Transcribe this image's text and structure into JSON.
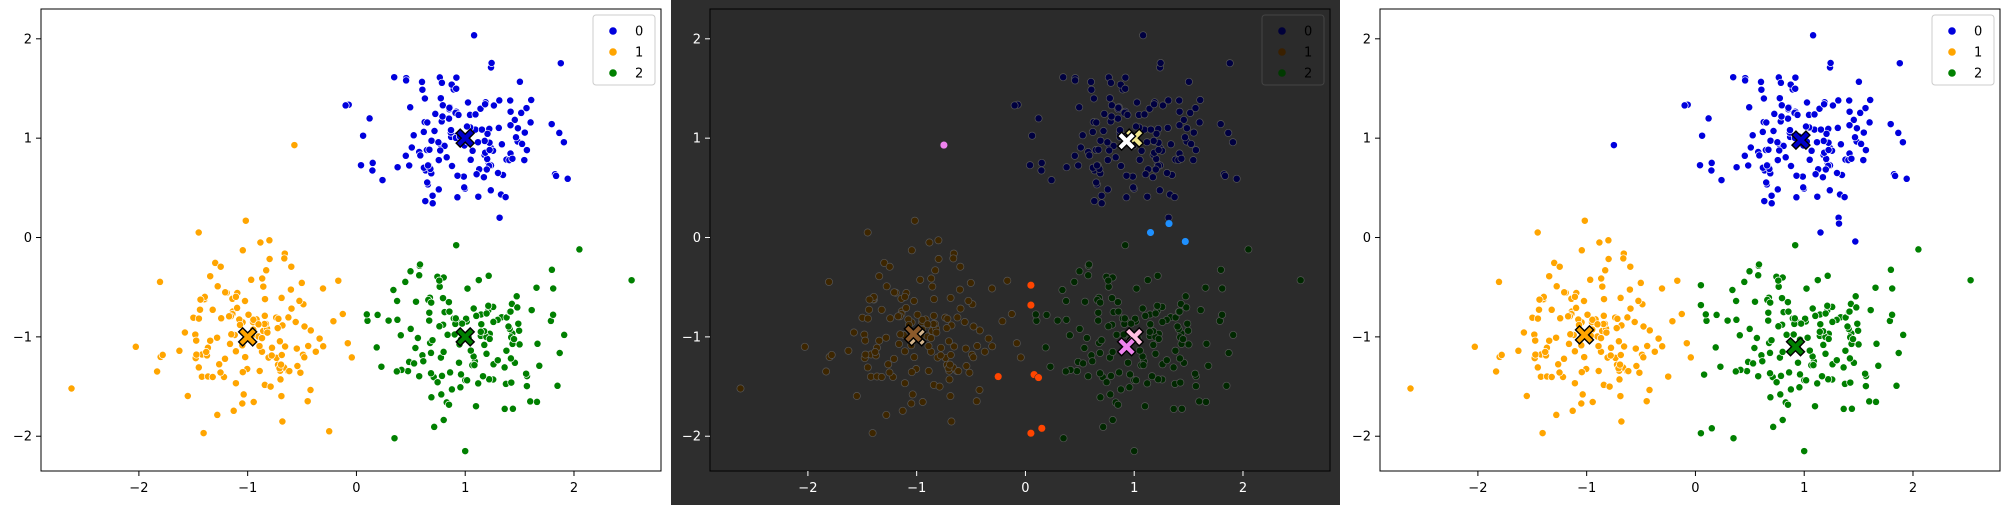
{
  "chart_data": [
    {
      "type": "scatter",
      "title": "",
      "xlabel": "",
      "ylabel": "",
      "xlim": [
        -2.9,
        2.8
      ],
      "ylim": [
        -2.35,
        2.3
      ],
      "xticks": [
        -2,
        -1,
        0,
        1,
        2
      ],
      "yticks": [
        -2,
        -1,
        0,
        1,
        2
      ],
      "background": "#ffffff",
      "grid": false,
      "legend": {
        "position": "top-right",
        "entries": [
          "0",
          "1",
          "2"
        ],
        "colors": [
          "#0000dd",
          "#ffa500",
          "#008000"
        ]
      },
      "series": [
        {
          "name": "0",
          "color": "#0000dd",
          "center": [
            1.0,
            1.0
          ],
          "spread": 0.38,
          "count": 150,
          "seed": 11,
          "outliers": [
            [
              -0.1,
              1.33
            ]
          ]
        },
        {
          "name": "1",
          "color": "#ffa500",
          "center": [
            -1.0,
            -1.0
          ],
          "spread": 0.38,
          "count": 150,
          "seed": 23,
          "outliers": [
            [
              -0.57,
              0.93
            ],
            [
              -2.62,
              -1.52
            ],
            [
              -1.45,
              0.05
            ],
            [
              -0.25,
              -1.95
            ]
          ]
        },
        {
          "name": "2",
          "color": "#008000",
          "center": [
            1.0,
            -1.0
          ],
          "spread": 0.38,
          "count": 150,
          "seed": 37,
          "outliers": [
            [
              2.53,
              -0.43
            ],
            [
              2.05,
              -0.12
            ],
            [
              0.35,
              -2.02
            ],
            [
              1.0,
              -2.15
            ]
          ]
        }
      ],
      "centroids": [
        {
          "x": 1.0,
          "y": 1.0,
          "color": "#0000cc"
        },
        {
          "x": -1.0,
          "y": -1.0,
          "color": "#ffa500"
        },
        {
          "x": 1.0,
          "y": -1.0,
          "color": "#008000"
        }
      ],
      "highlights": []
    },
    {
      "type": "scatter",
      "title": "",
      "xlabel": "",
      "ylabel": "",
      "xlim": [
        -2.9,
        2.8
      ],
      "ylim": [
        -2.35,
        2.3
      ],
      "xticks": [
        -2,
        -1,
        0,
        1,
        2
      ],
      "yticks": [
        -2,
        -1,
        0,
        1,
        2
      ],
      "background": "#2b2b2b",
      "grid": false,
      "legend": {
        "position": "top-right",
        "entries": [
          "0",
          "1",
          "2"
        ],
        "colors": [
          "#00003a",
          "#3a2000",
          "#003a00"
        ]
      },
      "series": [
        {
          "name": "0",
          "color": "#000040",
          "center": [
            1.0,
            1.0
          ],
          "spread": 0.38,
          "count": 150,
          "seed": 11,
          "outliers": [
            [
              -0.1,
              1.33
            ]
          ]
        },
        {
          "name": "1",
          "color": "#3d2600",
          "center": [
            -1.0,
            -1.0
          ],
          "spread": 0.38,
          "count": 150,
          "seed": 23,
          "outliers": [
            [
              -2.62,
              -1.52
            ],
            [
              -1.45,
              0.05
            ]
          ]
        },
        {
          "name": "2",
          "color": "#002800",
          "center": [
            1.0,
            -1.0
          ],
          "spread": 0.38,
          "count": 150,
          "seed": 37,
          "outliers": [
            [
              2.53,
              -0.43
            ],
            [
              2.05,
              -0.12
            ],
            [
              0.35,
              -2.02
            ],
            [
              1.0,
              -2.15
            ]
          ]
        }
      ],
      "centroids": [
        {
          "x": 1.0,
          "y": 1.0,
          "color": "#f0e68c"
        },
        {
          "x": 0.93,
          "y": 0.97,
          "color": "#ffffff"
        },
        {
          "x": -1.0,
          "y": -1.0,
          "color": "#d2b48c"
        },
        {
          "x": -1.03,
          "y": -0.97,
          "color": "#8b5a2b"
        },
        {
          "x": 1.0,
          "y": -1.0,
          "color": "#ffc0e0"
        },
        {
          "x": 0.93,
          "y": -1.1,
          "color": "#ee82ee"
        }
      ],
      "highlights": [
        {
          "x": -0.75,
          "y": 0.93,
          "color": "#ee82ee"
        },
        {
          "x": 1.15,
          "y": 0.05,
          "color": "#1e90ff"
        },
        {
          "x": 1.32,
          "y": 0.14,
          "color": "#1e90ff"
        },
        {
          "x": 1.47,
          "y": -0.04,
          "color": "#1e90ff"
        },
        {
          "x": 0.05,
          "y": -0.48,
          "color": "#ff4500"
        },
        {
          "x": 0.05,
          "y": -0.68,
          "color": "#ff4500"
        },
        {
          "x": -0.25,
          "y": -1.4,
          "color": "#ff4500"
        },
        {
          "x": 0.08,
          "y": -1.38,
          "color": "#ff4500"
        },
        {
          "x": 0.12,
          "y": -1.41,
          "color": "#ff4500"
        },
        {
          "x": 0.05,
          "y": -1.97,
          "color": "#ff4500"
        },
        {
          "x": 0.15,
          "y": -1.92,
          "color": "#ff4500"
        }
      ]
    },
    {
      "type": "scatter",
      "title": "",
      "xlabel": "",
      "ylabel": "",
      "xlim": [
        -2.9,
        2.8
      ],
      "ylim": [
        -2.35,
        2.3
      ],
      "xticks": [
        -2,
        -1,
        0,
        1,
        2
      ],
      "yticks": [
        -2,
        -1,
        0,
        1,
        2
      ],
      "background": "#ffffff",
      "grid": false,
      "legend": {
        "position": "top-right",
        "entries": [
          "0",
          "1",
          "2"
        ],
        "colors": [
          "#0000dd",
          "#ffa500",
          "#008000"
        ]
      },
      "series": [
        {
          "name": "0",
          "color": "#0000dd",
          "center": [
            1.0,
            1.0
          ],
          "spread": 0.38,
          "count": 150,
          "seed": 11,
          "outliers": [
            [
              -0.1,
              1.33
            ],
            [
              -0.75,
              0.93
            ],
            [
              1.15,
              0.05
            ],
            [
              1.32,
              0.14
            ],
            [
              1.47,
              -0.04
            ]
          ]
        },
        {
          "name": "1",
          "color": "#ffa500",
          "center": [
            -1.0,
            -1.0
          ],
          "spread": 0.38,
          "count": 150,
          "seed": 23,
          "outliers": [
            [
              -2.62,
              -1.52
            ],
            [
              -1.45,
              0.05
            ],
            [
              -0.25,
              -1.4
            ]
          ]
        },
        {
          "name": "2",
          "color": "#008000",
          "center": [
            1.0,
            -1.0
          ],
          "spread": 0.38,
          "count": 150,
          "seed": 37,
          "outliers": [
            [
              2.53,
              -0.43
            ],
            [
              2.05,
              -0.12
            ],
            [
              0.35,
              -2.02
            ],
            [
              1.0,
              -2.15
            ],
            [
              0.05,
              -0.48
            ],
            [
              0.05,
              -0.68
            ],
            [
              0.08,
              -1.38
            ],
            [
              0.05,
              -1.97
            ],
            [
              0.15,
              -1.92
            ]
          ]
        }
      ],
      "centroids": [
        {
          "x": 0.97,
          "y": 0.98,
          "color": "#0000cc"
        },
        {
          "x": -1.02,
          "y": -0.98,
          "color": "#ffa500"
        },
        {
          "x": 0.92,
          "y": -1.1,
          "color": "#008000"
        }
      ],
      "highlights": []
    }
  ]
}
